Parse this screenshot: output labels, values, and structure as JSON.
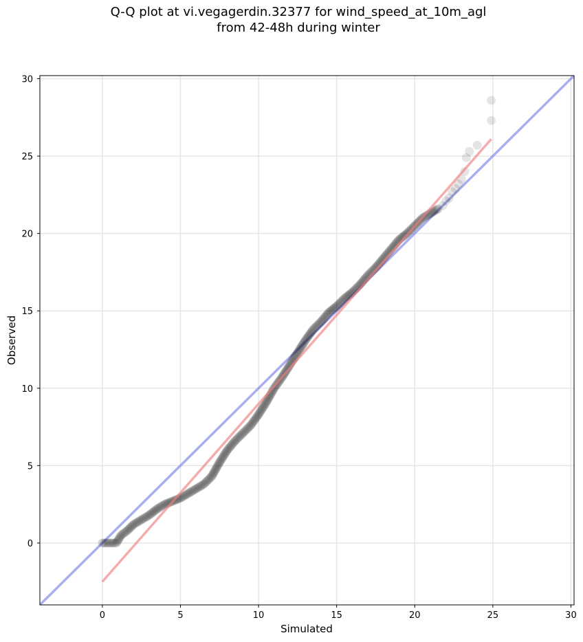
{
  "chart_data": {
    "type": "scatter",
    "title_line1": "Q-Q plot at vi.vegagerdin.32377 for wind_speed_at_10m_agl",
    "title_line2": "from 42-48h during winter",
    "xlabel": "Simulated",
    "ylabel": "Observed",
    "xlim": [
      -4,
      30.2
    ],
    "ylim": [
      -4,
      30.2
    ],
    "xticks": [
      0,
      5,
      10,
      15,
      20,
      25,
      30
    ],
    "yticks": [
      0,
      5,
      10,
      15,
      20,
      25,
      30
    ],
    "grid": true,
    "colors": {
      "points": "#000000",
      "reference_line": "#6f78e6",
      "fit_line": "#f08080",
      "grid": "#e6e6e6"
    },
    "reference_line": {
      "x": [
        -4,
        30.2
      ],
      "y": [
        -4,
        30.2
      ]
    },
    "fit_line": {
      "x": [
        0,
        24.9
      ],
      "y": [
        -2.5,
        26.1
      ]
    },
    "quantile_curve": {
      "x": [
        0.0,
        0.3,
        0.6,
        0.9,
        1.2,
        1.6,
        2.0,
        2.5,
        3.0,
        3.5,
        4.0,
        4.5,
        5.0,
        5.5,
        6.0,
        6.5,
        7.0,
        7.5,
        8.0,
        8.5,
        9.0,
        9.5,
        10.0,
        10.5,
        11.0,
        11.5,
        12.0,
        12.5,
        13.0,
        13.5,
        14.0,
        14.5,
        15.0,
        15.5,
        16.0,
        16.5,
        17.0,
        17.5,
        18.0,
        18.5,
        19.0,
        19.5,
        20.0,
        20.5,
        21.0,
        21.5
      ],
      "y": [
        0.0,
        0.0,
        0.0,
        0.0,
        0.5,
        0.8,
        1.2,
        1.5,
        1.8,
        2.2,
        2.5,
        2.7,
        2.9,
        3.2,
        3.5,
        3.8,
        4.3,
        5.2,
        6.0,
        6.6,
        7.1,
        7.6,
        8.3,
        9.1,
        10.0,
        10.7,
        11.5,
        12.3,
        13.1,
        13.8,
        14.3,
        14.9,
        15.3,
        15.8,
        16.2,
        16.7,
        17.3,
        17.8,
        18.4,
        19.0,
        19.6,
        20.0,
        20.5,
        21.0,
        21.3,
        21.6
      ]
    },
    "tail_points": {
      "x": [
        21.8,
        22.0,
        22.2,
        22.4,
        22.6,
        22.8,
        23.0,
        23.2,
        23.3,
        23.5,
        24.0,
        24.9,
        24.9
      ],
      "y": [
        21.8,
        22.1,
        22.3,
        22.7,
        22.9,
        23.2,
        23.5,
        24.0,
        24.9,
        25.3,
        25.7,
        27.3,
        28.6
      ]
    }
  }
}
